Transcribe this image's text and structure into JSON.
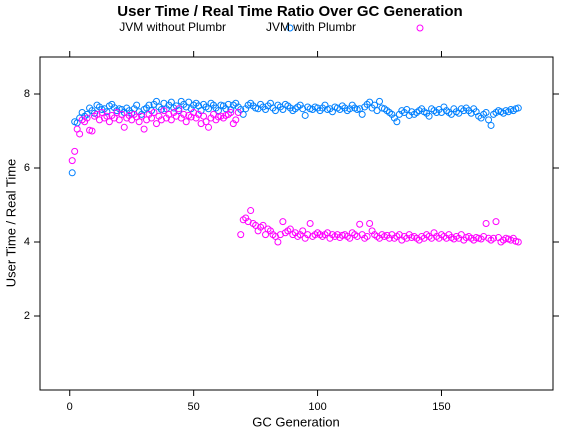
{
  "chart_data": {
    "type": "scatter",
    "title": "User Time / Real Time Ratio Over GC Generation",
    "x_label": "GC Generation",
    "y_label": "User Time / Real Time",
    "legend": "top",
    "xlim": [
      -12,
      195
    ],
    "ylim": [
      0,
      9
    ],
    "xticks": [
      0,
      50,
      100,
      150
    ],
    "yticks": [
      2,
      4,
      6,
      8
    ],
    "x": [
      1,
      2,
      3,
      4,
      5,
      6,
      7,
      8,
      9,
      10,
      11,
      12,
      13,
      14,
      15,
      16,
      17,
      18,
      19,
      20,
      21,
      22,
      23,
      24,
      25,
      26,
      27,
      28,
      29,
      30,
      31,
      32,
      33,
      34,
      35,
      36,
      37,
      38,
      39,
      40,
      41,
      42,
      43,
      44,
      45,
      46,
      47,
      48,
      49,
      50,
      51,
      52,
      53,
      54,
      55,
      56,
      57,
      58,
      59,
      60,
      61,
      62,
      63,
      64,
      65,
      66,
      67,
      68,
      69,
      70,
      71,
      72,
      73,
      74,
      75,
      76,
      77,
      78,
      79,
      80,
      81,
      82,
      83,
      84,
      85,
      86,
      87,
      88,
      89,
      90,
      91,
      92,
      93,
      94,
      95,
      96,
      97,
      98,
      99,
      100,
      101,
      102,
      103,
      104,
      105,
      106,
      107,
      108,
      109,
      110,
      111,
      112,
      113,
      114,
      115,
      116,
      117,
      118,
      119,
      120,
      121,
      122,
      123,
      124,
      125,
      126,
      127,
      128,
      129,
      130,
      131,
      132,
      133,
      134,
      135,
      136,
      137,
      138,
      139,
      140,
      141,
      142,
      143,
      144,
      145,
      146,
      147,
      148,
      149,
      150,
      151,
      152,
      153,
      154,
      155,
      156,
      157,
      158,
      159,
      160,
      161,
      162,
      163,
      164,
      165,
      166,
      167,
      168,
      169,
      170,
      171,
      172,
      173,
      174,
      175,
      176,
      177,
      178,
      179,
      180,
      181
    ],
    "series": [
      {
        "name": "JVM without Plumbr",
        "color": "#0080ff",
        "values": [
          5.87,
          7.25,
          7.22,
          7.35,
          7.5,
          7.4,
          7.45,
          7.62,
          7.55,
          7.48,
          7.7,
          7.65,
          7.58,
          7.6,
          7.52,
          7.68,
          7.72,
          7.63,
          7.55,
          7.6,
          7.58,
          7.5,
          7.62,
          7.55,
          7.48,
          7.6,
          7.7,
          7.52,
          7.45,
          7.58,
          7.62,
          7.7,
          7.55,
          7.72,
          7.8,
          7.65,
          7.58,
          7.75,
          7.6,
          7.7,
          7.78,
          7.62,
          7.68,
          7.55,
          7.8,
          7.72,
          7.65,
          7.78,
          7.6,
          7.7,
          7.75,
          7.68,
          7.55,
          7.72,
          7.65,
          7.6,
          7.75,
          7.7,
          7.62,
          7.55,
          7.7,
          7.68,
          7.6,
          7.72,
          7.58,
          7.7,
          7.75,
          7.65,
          7.58,
          7.45,
          7.6,
          7.7,
          7.75,
          7.68,
          7.62,
          7.6,
          7.72,
          7.65,
          7.58,
          7.68,
          7.75,
          7.62,
          7.55,
          7.7,
          7.65,
          7.58,
          7.72,
          7.68,
          7.62,
          7.55,
          7.6,
          7.65,
          7.7,
          7.6,
          7.42,
          7.65,
          7.6,
          7.58,
          7.65,
          7.62,
          7.55,
          7.62,
          7.7,
          7.58,
          7.6,
          7.52,
          7.65,
          7.62,
          7.58,
          7.68,
          7.62,
          7.55,
          7.6,
          7.7,
          7.62,
          7.58,
          7.6,
          7.45,
          7.65,
          7.72,
          7.78,
          7.62,
          7.7,
          7.55,
          7.8,
          7.62,
          7.6,
          7.55,
          7.5,
          7.45,
          7.35,
          7.25,
          7.45,
          7.55,
          7.5,
          7.58,
          7.42,
          7.52,
          7.45,
          7.5,
          7.55,
          7.6,
          7.52,
          7.48,
          7.4,
          7.6,
          7.55,
          7.5,
          7.58,
          7.5,
          7.65,
          7.55,
          7.5,
          7.45,
          7.6,
          7.52,
          7.48,
          7.6,
          7.55,
          7.62,
          7.55,
          7.48,
          7.6,
          7.52,
          7.4,
          7.35,
          7.45,
          7.5,
          7.3,
          7.15,
          7.45,
          7.5,
          7.55,
          7.52,
          7.48,
          7.55,
          7.52,
          7.58,
          7.55,
          7.6,
          7.62
        ]
      },
      {
        "name": "JVM with Plumbr",
        "color": "#ff00ff",
        "values": [
          6.2,
          6.45,
          7.05,
          6.92,
          7.3,
          7.25,
          7.35,
          7.02,
          7.0,
          7.4,
          7.45,
          7.3,
          7.5,
          7.35,
          7.4,
          7.25,
          7.42,
          7.35,
          7.5,
          7.3,
          7.45,
          7.1,
          7.35,
          7.42,
          7.3,
          7.45,
          7.38,
          7.25,
          7.4,
          7.05,
          7.3,
          7.45,
          7.35,
          7.5,
          7.2,
          7.4,
          7.3,
          7.55,
          7.35,
          7.45,
          7.3,
          7.5,
          7.4,
          7.6,
          7.35,
          7.45,
          7.25,
          7.42,
          7.38,
          7.5,
          7.35,
          7.45,
          7.2,
          7.4,
          7.25,
          7.1,
          7.35,
          7.45,
          7.3,
          7.38,
          7.4,
          7.35,
          7.42,
          7.45,
          7.5,
          7.2,
          7.3,
          7.5,
          4.2,
          4.6,
          4.65,
          4.55,
          4.85,
          4.5,
          4.45,
          4.3,
          4.4,
          4.45,
          4.2,
          4.35,
          4.3,
          4.2,
          4.15,
          4.0,
          4.2,
          4.55,
          4.25,
          4.3,
          4.35,
          4.2,
          4.25,
          4.15,
          4.2,
          4.3,
          4.1,
          4.2,
          4.5,
          4.15,
          4.2,
          4.25,
          4.2,
          4.15,
          4.2,
          4.25,
          4.1,
          4.2,
          4.15,
          4.2,
          4.12,
          4.18,
          4.2,
          4.15,
          4.1,
          4.25,
          4.2,
          4.15,
          4.48,
          4.2,
          4.1,
          4.15,
          4.5,
          4.3,
          4.2,
          4.15,
          4.1,
          4.2,
          4.15,
          4.18,
          4.1,
          4.2,
          4.1,
          4.15,
          4.2,
          4.05,
          4.15,
          4.1,
          4.2,
          4.12,
          4.15,
          4.1,
          4.05,
          4.15,
          4.1,
          4.2,
          4.15,
          4.1,
          4.25,
          4.15,
          4.1,
          4.2,
          4.15,
          4.1,
          4.2,
          4.12,
          4.08,
          4.15,
          4.1,
          4.2,
          4.05,
          4.12,
          4.15,
          4.1,
          4.05,
          4.12,
          4.1,
          4.08,
          4.15,
          4.5,
          4.1,
          4.05,
          4.1,
          4.55,
          4.12,
          4.0,
          4.05,
          4.1,
          4.08,
          4.05,
          4.1,
          4.02,
          4.0
        ]
      }
    ]
  }
}
